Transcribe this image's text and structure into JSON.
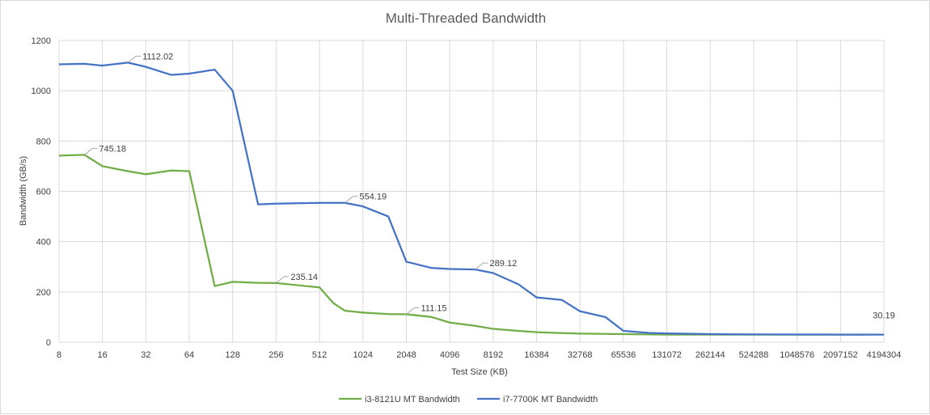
{
  "chart_data": {
    "type": "line",
    "title": "Multi-Threaded Bandwidth",
    "xlabel": "Test Size (KB)",
    "ylabel": "Bandwidth (GB/s)",
    "x_scale": "log2",
    "xlim": [
      8,
      4194304
    ],
    "ylim": [
      0,
      1200
    ],
    "y_ticks": [
      0,
      200,
      400,
      600,
      800,
      1000,
      1200
    ],
    "x_ticks": [
      8,
      16,
      32,
      64,
      128,
      256,
      512,
      1024,
      2048,
      4096,
      8192,
      16384,
      32768,
      65536,
      131072,
      262144,
      524288,
      1048576,
      2097152,
      4194304
    ],
    "grid": true,
    "legend_position": "bottom",
    "series": [
      {
        "name": "i3-8121U MT Bandwidth",
        "color": "#70ad47",
        "points": [
          [
            8,
            742
          ],
          [
            12,
            745.18
          ],
          [
            16,
            700
          ],
          [
            24,
            680
          ],
          [
            32,
            668
          ],
          [
            48,
            683
          ],
          [
            64,
            680
          ],
          [
            96,
            223
          ],
          [
            128,
            240
          ],
          [
            192,
            236
          ],
          [
            256,
            235.14
          ],
          [
            384,
            225
          ],
          [
            512,
            218
          ],
          [
            640,
            155
          ],
          [
            768,
            125
          ],
          [
            1024,
            118
          ],
          [
            1536,
            112
          ],
          [
            2048,
            111.15
          ],
          [
            3072,
            100
          ],
          [
            4096,
            78
          ],
          [
            6144,
            65
          ],
          [
            8192,
            53
          ],
          [
            12288,
            45
          ],
          [
            16384,
            40
          ],
          [
            24576,
            36
          ],
          [
            32768,
            34
          ],
          [
            49152,
            33
          ],
          [
            65536,
            32
          ],
          [
            131072,
            30
          ],
          [
            262144,
            30
          ],
          [
            524288,
            30
          ],
          [
            1048576,
            30
          ],
          [
            2097152,
            30
          ],
          [
            3145728,
            30
          ]
        ]
      },
      {
        "name": "i7-7700K MT Bandwidth",
        "color": "#4472c4",
        "points": [
          [
            8,
            1105
          ],
          [
            12,
            1107
          ],
          [
            16,
            1100
          ],
          [
            24,
            1112.02
          ],
          [
            32,
            1095
          ],
          [
            48,
            1063
          ],
          [
            64,
            1068
          ],
          [
            96,
            1084
          ],
          [
            128,
            1000
          ],
          [
            192,
            548
          ],
          [
            256,
            551
          ],
          [
            384,
            553
          ],
          [
            512,
            554
          ],
          [
            768,
            554.19
          ],
          [
            1024,
            540
          ],
          [
            1536,
            500
          ],
          [
            2048,
            320
          ],
          [
            3072,
            295
          ],
          [
            4096,
            291
          ],
          [
            6144,
            289.12
          ],
          [
            8192,
            275
          ],
          [
            12288,
            230
          ],
          [
            16384,
            178
          ],
          [
            24576,
            168
          ],
          [
            32768,
            123
          ],
          [
            49152,
            100
          ],
          [
            65536,
            45
          ],
          [
            98304,
            37
          ],
          [
            131072,
            35
          ],
          [
            262144,
            32
          ],
          [
            524288,
            31
          ],
          [
            1048576,
            30.5
          ],
          [
            2097152,
            30.3
          ],
          [
            4194304,
            30.19
          ]
        ]
      }
    ],
    "data_labels": [
      {
        "series": 0,
        "x": 12,
        "y": 745.18,
        "text": "745.18"
      },
      {
        "series": 0,
        "x": 256,
        "y": 235.14,
        "text": "235.14"
      },
      {
        "series": 0,
        "x": 2048,
        "y": 111.15,
        "text": "111.15"
      },
      {
        "series": 1,
        "x": 24,
        "y": 1112.02,
        "text": "1112.02"
      },
      {
        "series": 1,
        "x": 768,
        "y": 554.19,
        "text": "554.19"
      },
      {
        "series": 1,
        "x": 6144,
        "y": 289.12,
        "text": "289.12"
      },
      {
        "series": 1,
        "x": 4194304,
        "y": 30.19,
        "text": "30.19"
      }
    ]
  }
}
